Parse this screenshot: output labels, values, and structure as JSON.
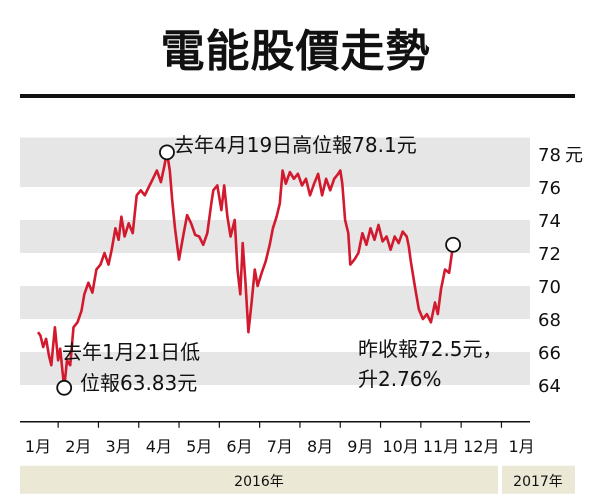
{
  "title": "電能股價走勢",
  "chart_data": {
    "type": "line",
    "unit": "元",
    "ylim": [
      62.5,
      79
    ],
    "y_ticks": [
      64,
      66,
      68,
      70,
      72,
      74,
      76,
      78
    ],
    "y_tick_labels": [
      "64",
      "66",
      "68",
      "70",
      "72",
      "74",
      "76",
      "78"
    ],
    "months": [
      "1月",
      "2月",
      "3月",
      "4月",
      "5月",
      "6月",
      "7月",
      "8月",
      "9月",
      "10月",
      "11月",
      "12月",
      "1月"
    ],
    "years": [
      "2016年",
      "2017年"
    ],
    "series": [
      {
        "color": "#d2192e",
        "values": [
          [
            0,
            67.2
          ],
          [
            0.06,
            67.0
          ],
          [
            0.13,
            66.3
          ],
          [
            0.2,
            66.8
          ],
          [
            0.27,
            65.8
          ],
          [
            0.33,
            65.2
          ],
          [
            0.42,
            67.5
          ],
          [
            0.5,
            65.5
          ],
          [
            0.55,
            66.2
          ],
          [
            0.6,
            65.0
          ],
          [
            0.65,
            63.83
          ],
          [
            0.72,
            65.5
          ],
          [
            0.8,
            65.2
          ],
          [
            0.88,
            67.5
          ],
          [
            0.98,
            67.8
          ],
          [
            1.08,
            68.5
          ],
          [
            1.15,
            69.5
          ],
          [
            1.25,
            70.2
          ],
          [
            1.35,
            69.6
          ],
          [
            1.45,
            71.0
          ],
          [
            1.55,
            71.3
          ],
          [
            1.65,
            72.0
          ],
          [
            1.75,
            71.3
          ],
          [
            1.83,
            72.2
          ],
          [
            1.92,
            73.5
          ],
          [
            2.0,
            72.8
          ],
          [
            2.07,
            74.2
          ],
          [
            2.15,
            73.0
          ],
          [
            2.25,
            73.8
          ],
          [
            2.35,
            73.2
          ],
          [
            2.45,
            75.5
          ],
          [
            2.55,
            75.8
          ],
          [
            2.65,
            75.5
          ],
          [
            2.75,
            76.0
          ],
          [
            2.85,
            76.5
          ],
          [
            2.95,
            77.0
          ],
          [
            3.05,
            76.3
          ],
          [
            3.13,
            77.2
          ],
          [
            3.2,
            78.1
          ],
          [
            3.27,
            77.0
          ],
          [
            3.33,
            75.2
          ],
          [
            3.4,
            73.5
          ],
          [
            3.5,
            71.6
          ],
          [
            3.6,
            73.0
          ],
          [
            3.7,
            74.3
          ],
          [
            3.8,
            73.8
          ],
          [
            3.9,
            73.1
          ],
          [
            4.0,
            73.0
          ],
          [
            4.1,
            72.5
          ],
          [
            4.2,
            73.2
          ],
          [
            4.3,
            75.0
          ],
          [
            4.35,
            75.8
          ],
          [
            4.45,
            76.1
          ],
          [
            4.55,
            74.6
          ],
          [
            4.62,
            76.1
          ],
          [
            4.7,
            74.2
          ],
          [
            4.78,
            73.0
          ],
          [
            4.88,
            74.0
          ],
          [
            4.95,
            71.0
          ],
          [
            5.02,
            69.5
          ],
          [
            5.08,
            72.6
          ],
          [
            5.15,
            70.2
          ],
          [
            5.22,
            67.2
          ],
          [
            5.3,
            69.0
          ],
          [
            5.38,
            71.0
          ],
          [
            5.45,
            70.0
          ],
          [
            5.55,
            70.8
          ],
          [
            5.65,
            71.5
          ],
          [
            5.75,
            72.5
          ],
          [
            5.83,
            73.5
          ],
          [
            5.92,
            74.2
          ],
          [
            6.0,
            75.0
          ],
          [
            6.07,
            77.0
          ],
          [
            6.15,
            76.2
          ],
          [
            6.25,
            76.9
          ],
          [
            6.35,
            76.5
          ],
          [
            6.45,
            76.8
          ],
          [
            6.55,
            76.1
          ],
          [
            6.65,
            76.5
          ],
          [
            6.75,
            75.5
          ],
          [
            6.85,
            76.2
          ],
          [
            6.95,
            76.8
          ],
          [
            7.05,
            75.5
          ],
          [
            7.15,
            76.5
          ],
          [
            7.25,
            75.8
          ],
          [
            7.35,
            76.5
          ],
          [
            7.45,
            76.8
          ],
          [
            7.5,
            77.0
          ],
          [
            7.55,
            76.2
          ],
          [
            7.62,
            74.0
          ],
          [
            7.7,
            73.2
          ],
          [
            7.75,
            71.3
          ],
          [
            7.85,
            71.6
          ],
          [
            7.95,
            72.0
          ],
          [
            8.05,
            73.2
          ],
          [
            8.15,
            72.5
          ],
          [
            8.25,
            73.5
          ],
          [
            8.35,
            72.8
          ],
          [
            8.45,
            73.7
          ],
          [
            8.55,
            72.7
          ],
          [
            8.65,
            73.0
          ],
          [
            8.75,
            72.2
          ],
          [
            8.85,
            73.0
          ],
          [
            8.95,
            72.6
          ],
          [
            9.05,
            73.3
          ],
          [
            9.15,
            73.0
          ],
          [
            9.2,
            72.4
          ],
          [
            9.25,
            71.5
          ],
          [
            9.35,
            70.0
          ],
          [
            9.45,
            68.6
          ],
          [
            9.55,
            68.0
          ],
          [
            9.65,
            68.3
          ],
          [
            9.75,
            67.8
          ],
          [
            9.85,
            69.0
          ],
          [
            9.92,
            68.3
          ],
          [
            10.0,
            69.8
          ],
          [
            10.1,
            71.0
          ],
          [
            10.2,
            70.8
          ],
          [
            10.3,
            72.5
          ]
        ]
      }
    ],
    "annotations": {
      "high": {
        "x": 3.2,
        "y": 78.1,
        "line1": "去年4月19日高位報78.1元"
      },
      "low": {
        "x": 0.65,
        "y": 63.83,
        "line1": "去年1月21日低",
        "line2": "位報63.83元"
      },
      "last": {
        "x": 10.3,
        "y": 72.5,
        "line1": "昨收報72.5元，",
        "line2": "升2.76%"
      }
    }
  }
}
